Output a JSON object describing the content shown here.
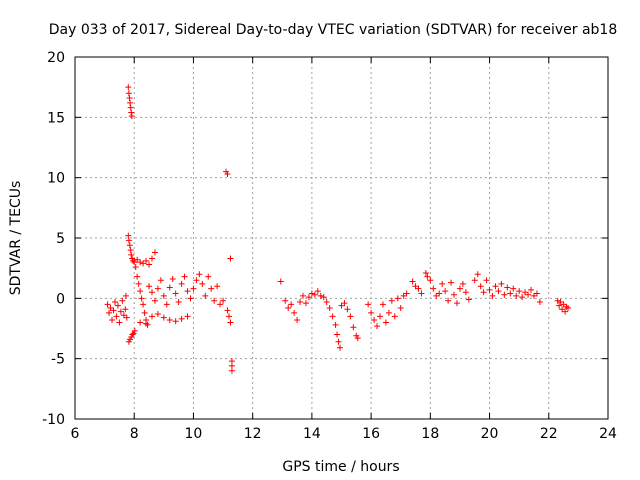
{
  "chart_data": {
    "type": "scatter",
    "title": "Day 033 of 2017, Sidereal Day-to-day VTEC variation (SDTVAR) for receiver ab18",
    "xlabel": "GPS time / hours",
    "ylabel": "SDTVAR / TECUs",
    "xlim": [
      6,
      24
    ],
    "ylim": [
      -10,
      20
    ],
    "xticks": [
      "6",
      "8",
      "10",
      "12",
      "14",
      "16",
      "18",
      "20",
      "22",
      "24"
    ],
    "yticks": [
      "-10",
      "-5",
      "0",
      "5",
      "10",
      "15",
      "20"
    ],
    "grid": true,
    "marker": "+",
    "color": "#ff0000",
    "series": [
      {
        "name": "SDTVAR",
        "points": [
          [
            7.1,
            -0.5
          ],
          [
            7.15,
            -1.2
          ],
          [
            7.2,
            -0.8
          ],
          [
            7.25,
            -1.8
          ],
          [
            7.3,
            -1.0
          ],
          [
            7.35,
            -0.3
          ],
          [
            7.4,
            -1.5
          ],
          [
            7.45,
            -0.6
          ],
          [
            7.5,
            -2.0
          ],
          [
            7.55,
            -1.1
          ],
          [
            7.6,
            -0.2
          ],
          [
            7.65,
            -1.4
          ],
          [
            7.7,
            -0.9
          ],
          [
            7.72,
            0.2
          ],
          [
            7.75,
            -1.6
          ],
          [
            7.8,
            17.5
          ],
          [
            7.82,
            17.0
          ],
          [
            7.84,
            16.6
          ],
          [
            7.86,
            16.2
          ],
          [
            7.88,
            15.8
          ],
          [
            7.9,
            15.4
          ],
          [
            7.92,
            15.1
          ],
          [
            7.8,
            5.2
          ],
          [
            7.82,
            4.8
          ],
          [
            7.85,
            4.4
          ],
          [
            7.88,
            4.0
          ],
          [
            7.9,
            3.6
          ],
          [
            7.93,
            3.3
          ],
          [
            7.96,
            3.1
          ],
          [
            7.82,
            -3.6
          ],
          [
            7.86,
            -3.4
          ],
          [
            7.9,
            -3.2
          ],
          [
            7.94,
            -3.0
          ],
          [
            7.98,
            -2.9
          ],
          [
            8.02,
            -2.7
          ],
          [
            8.0,
            3.0
          ],
          [
            8.05,
            2.6
          ],
          [
            8.1,
            1.8
          ],
          [
            8.15,
            1.2
          ],
          [
            8.2,
            0.6
          ],
          [
            8.25,
            0.0
          ],
          [
            8.3,
            -0.5
          ],
          [
            8.35,
            -1.2
          ],
          [
            8.4,
            -1.8
          ],
          [
            8.45,
            -2.2
          ],
          [
            8.1,
            3.2
          ],
          [
            8.2,
            3.0
          ],
          [
            8.3,
            2.9
          ],
          [
            8.4,
            3.1
          ],
          [
            8.5,
            2.8
          ],
          [
            8.6,
            3.3
          ],
          [
            8.7,
            3.8
          ],
          [
            8.2,
            -2.0
          ],
          [
            8.4,
            -2.1
          ],
          [
            8.6,
            -1.5
          ],
          [
            8.8,
            -1.3
          ],
          [
            9.0,
            -1.6
          ],
          [
            9.2,
            -1.8
          ],
          [
            9.4,
            -1.9
          ],
          [
            9.6,
            -1.7
          ],
          [
            9.8,
            -1.5
          ],
          [
            8.5,
            1.0
          ],
          [
            8.6,
            0.5
          ],
          [
            8.7,
            -0.2
          ],
          [
            8.8,
            0.8
          ],
          [
            8.9,
            1.5
          ],
          [
            9.0,
            0.2
          ],
          [
            9.1,
            -0.5
          ],
          [
            9.2,
            0.9
          ],
          [
            9.3,
            1.6
          ],
          [
            9.4,
            0.4
          ],
          [
            9.5,
            -0.3
          ],
          [
            9.6,
            1.2
          ],
          [
            9.7,
            1.8
          ],
          [
            9.8,
            0.6
          ],
          [
            9.9,
            0.0
          ],
          [
            10.0,
            0.8
          ],
          [
            10.1,
            1.5
          ],
          [
            10.2,
            2.0
          ],
          [
            10.3,
            1.2
          ],
          [
            10.4,
            0.2
          ],
          [
            10.5,
            1.8
          ],
          [
            10.6,
            0.8
          ],
          [
            10.7,
            -0.2
          ],
          [
            10.8,
            1.0
          ],
          [
            10.9,
            -0.5
          ],
          [
            11.0,
            -0.2
          ],
          [
            11.1,
            10.5
          ],
          [
            11.15,
            10.3
          ],
          [
            11.15,
            -1.0
          ],
          [
            11.2,
            -1.5
          ],
          [
            11.25,
            -2.0
          ],
          [
            11.25,
            3.3
          ],
          [
            11.3,
            -5.2
          ],
          [
            11.3,
            -5.6
          ],
          [
            11.3,
            -6.0
          ],
          [
            12.95,
            1.4
          ],
          [
            13.1,
            -0.2
          ],
          [
            13.2,
            -0.8
          ],
          [
            13.3,
            -0.5
          ],
          [
            13.4,
            -1.2
          ],
          [
            13.5,
            -1.8
          ],
          [
            13.6,
            -0.3
          ],
          [
            13.7,
            0.2
          ],
          [
            13.8,
            -0.4
          ],
          [
            13.9,
            0.1
          ],
          [
            14.0,
            0.4
          ],
          [
            14.1,
            0.3
          ],
          [
            14.2,
            0.6
          ],
          [
            14.3,
            0.2
          ],
          [
            14.4,
            0.1
          ],
          [
            14.5,
            -0.3
          ],
          [
            14.6,
            -0.8
          ],
          [
            14.7,
            -1.5
          ],
          [
            14.8,
            -2.2
          ],
          [
            14.85,
            -3.0
          ],
          [
            14.9,
            -3.6
          ],
          [
            14.95,
            -4.1
          ],
          [
            15.0,
            -0.6
          ],
          [
            15.1,
            -0.4
          ],
          [
            15.2,
            -0.9
          ],
          [
            15.3,
            -1.5
          ],
          [
            15.4,
            -2.4
          ],
          [
            15.5,
            -3.1
          ],
          [
            15.55,
            -3.3
          ],
          [
            15.9,
            -0.5
          ],
          [
            16.0,
            -1.2
          ],
          [
            16.1,
            -1.8
          ],
          [
            16.2,
            -2.3
          ],
          [
            16.3,
            -1.5
          ],
          [
            16.4,
            -0.5
          ],
          [
            16.5,
            -2.0
          ],
          [
            16.6,
            -1.2
          ],
          [
            16.7,
            -0.2
          ],
          [
            16.8,
            -1.5
          ],
          [
            16.9,
            0.0
          ],
          [
            17.0,
            -0.8
          ],
          [
            17.1,
            0.2
          ],
          [
            17.2,
            0.4
          ],
          [
            17.4,
            1.4
          ],
          [
            17.5,
            1.0
          ],
          [
            17.6,
            0.8
          ],
          [
            17.7,
            0.4
          ],
          [
            17.85,
            2.1
          ],
          [
            17.9,
            1.8
          ],
          [
            18.0,
            1.5
          ],
          [
            18.1,
            0.8
          ],
          [
            18.2,
            0.2
          ],
          [
            18.3,
            0.4
          ],
          [
            18.4,
            1.2
          ],
          [
            18.5,
            0.6
          ],
          [
            18.6,
            -0.2
          ],
          [
            18.7,
            1.3
          ],
          [
            18.8,
            0.3
          ],
          [
            18.9,
            -0.4
          ],
          [
            19.0,
            0.8
          ],
          [
            19.1,
            1.2
          ],
          [
            19.2,
            0.5
          ],
          [
            19.3,
            -0.1
          ],
          [
            19.5,
            1.5
          ],
          [
            19.6,
            2.0
          ],
          [
            19.7,
            1.0
          ],
          [
            19.8,
            0.5
          ],
          [
            19.9,
            1.5
          ],
          [
            20.0,
            0.7
          ],
          [
            20.1,
            0.2
          ],
          [
            20.2,
            1.0
          ],
          [
            20.3,
            0.6
          ],
          [
            20.4,
            1.2
          ],
          [
            20.5,
            0.3
          ],
          [
            20.6,
            0.9
          ],
          [
            20.7,
            0.4
          ],
          [
            20.8,
            0.8
          ],
          [
            20.9,
            0.2
          ],
          [
            21.0,
            0.6
          ],
          [
            21.1,
            0.1
          ],
          [
            21.2,
            0.5
          ],
          [
            21.3,
            0.3
          ],
          [
            21.4,
            0.7
          ],
          [
            21.5,
            0.2
          ],
          [
            21.6,
            0.4
          ],
          [
            21.7,
            -0.3
          ],
          [
            22.3,
            -0.2
          ],
          [
            22.35,
            -0.6
          ],
          [
            22.4,
            -0.3
          ],
          [
            22.45,
            -0.9
          ],
          [
            22.5,
            -0.5
          ],
          [
            22.55,
            -1.1
          ],
          [
            22.6,
            -0.7
          ],
          [
            22.65,
            -0.8
          ]
        ]
      }
    ]
  }
}
